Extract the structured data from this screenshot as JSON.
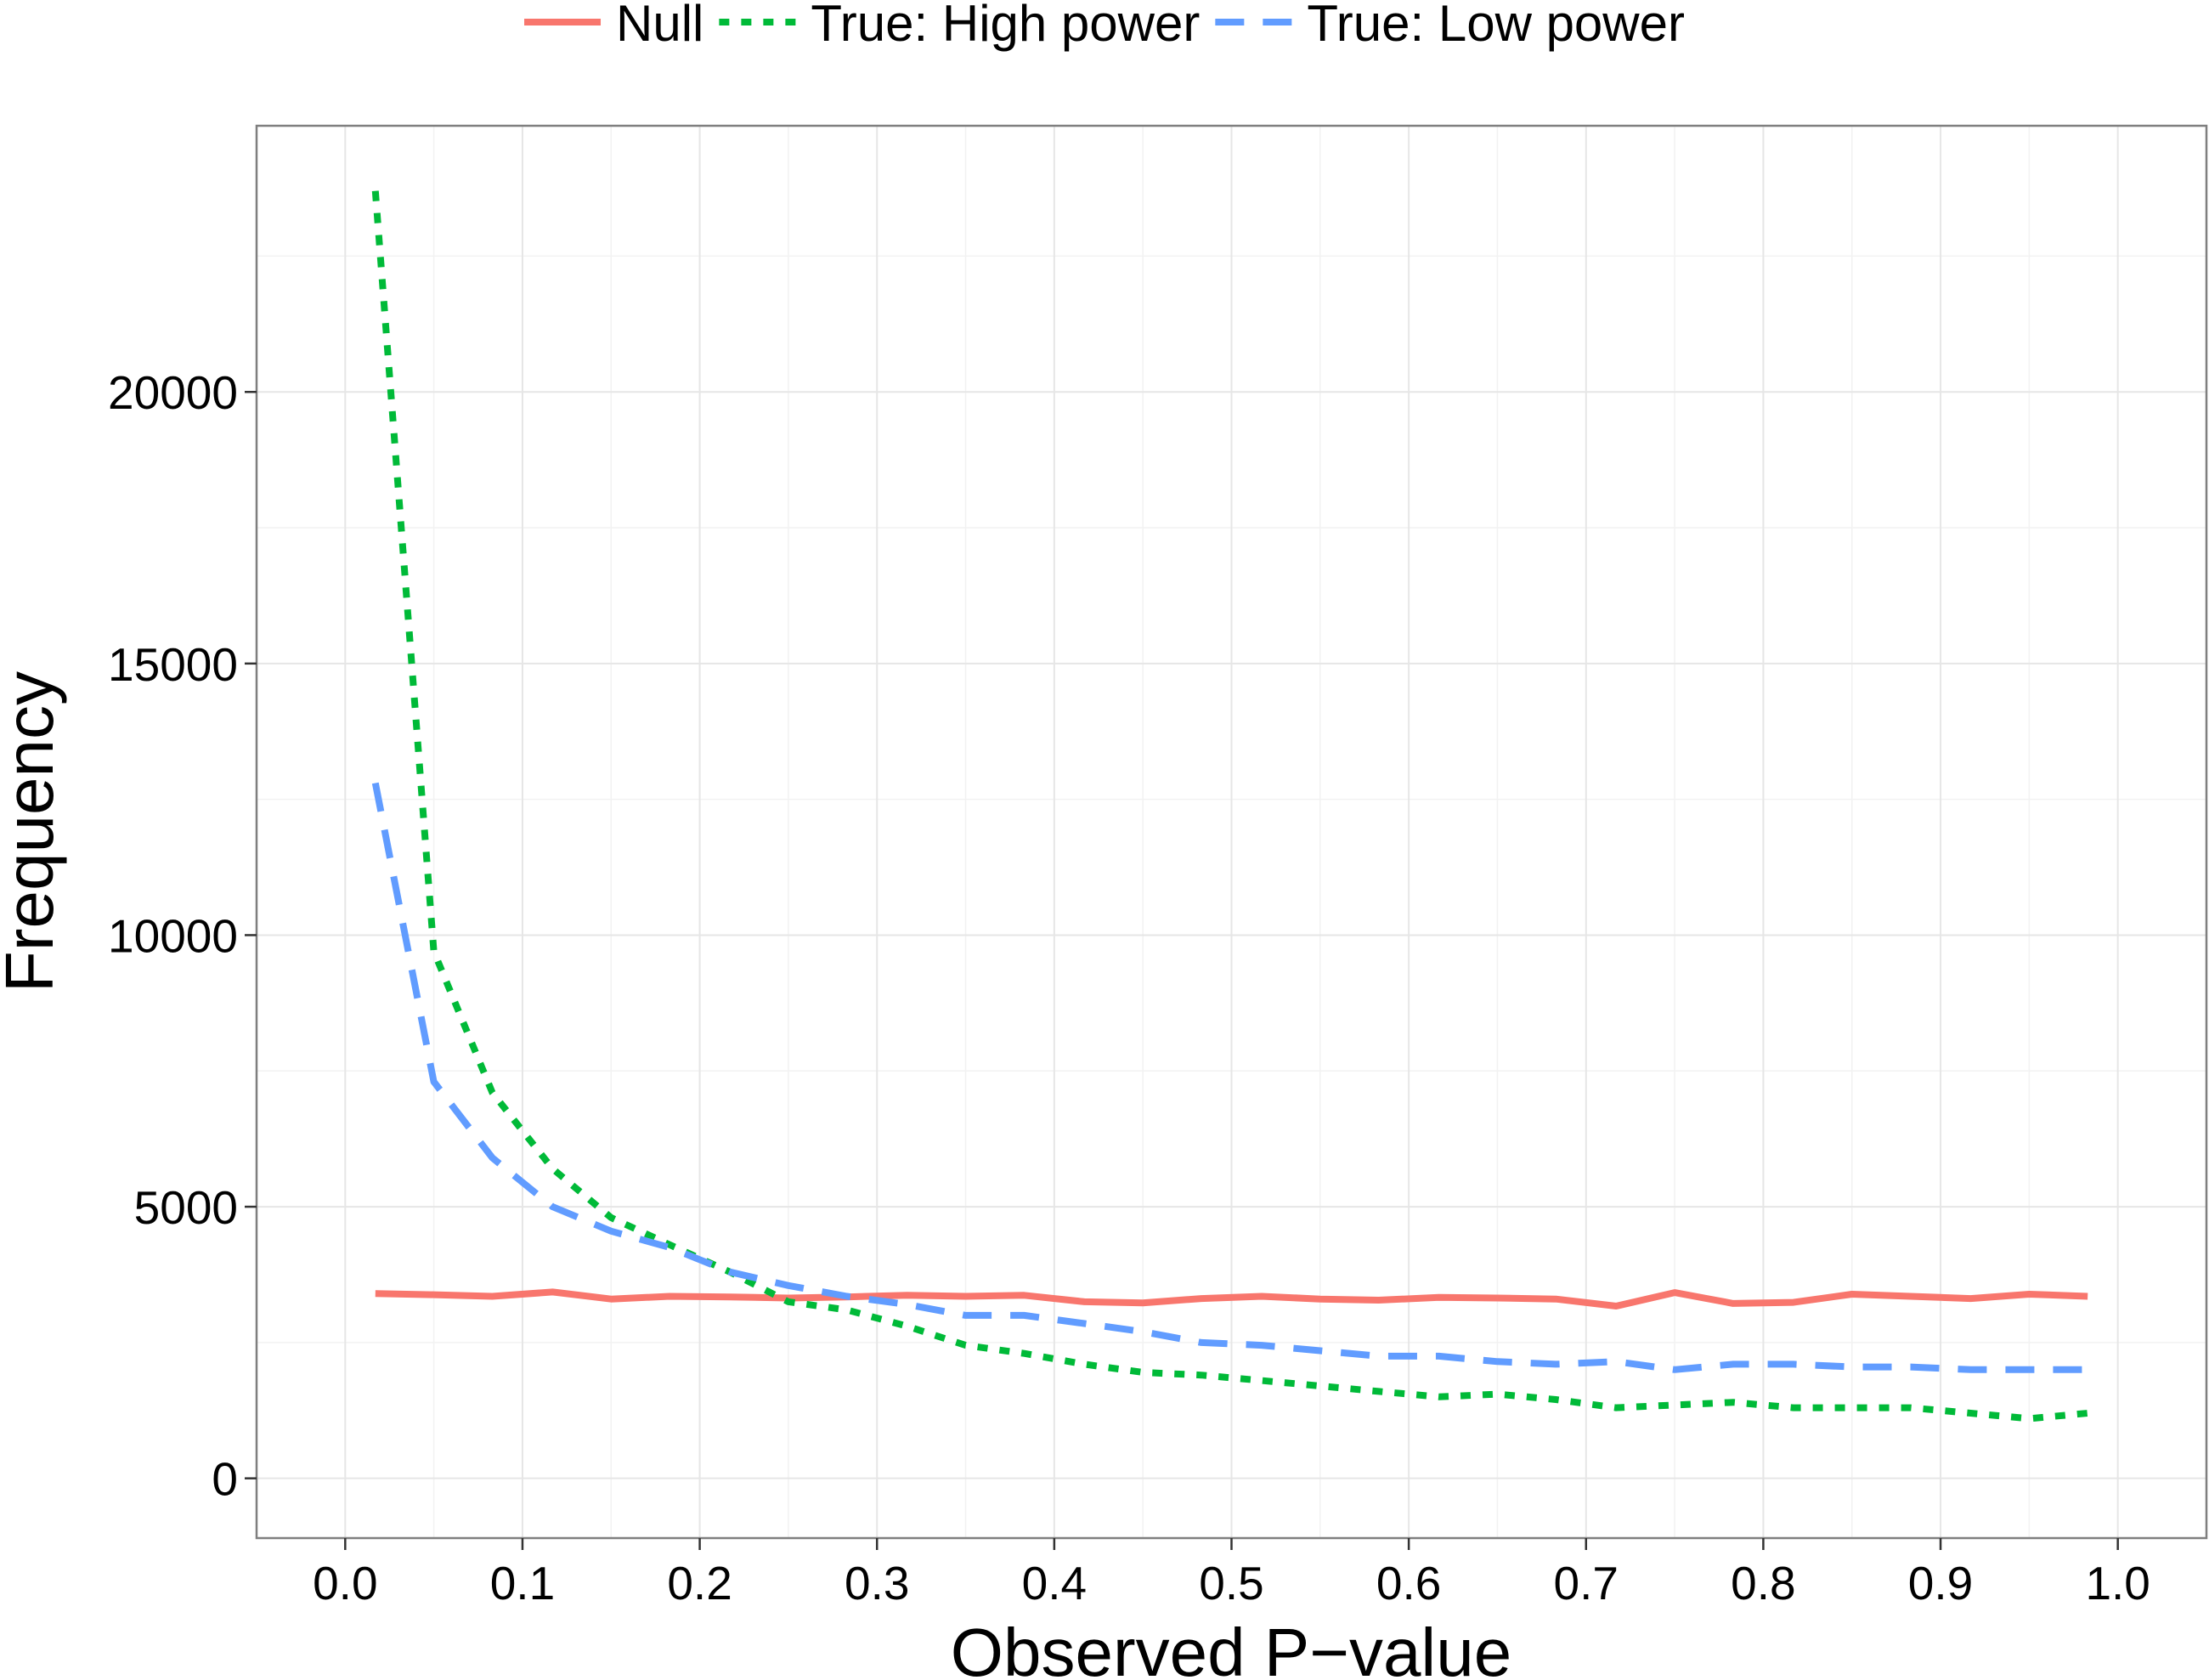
{
  "chart_data": {
    "type": "line",
    "xlabel": "Observed P−value",
    "ylabel": "Frequency",
    "xlim": [
      -0.05,
      1.05
    ],
    "ylim": [
      -1100,
      24900
    ],
    "xticks": [
      0.0,
      0.1,
      0.2,
      0.3,
      0.4,
      0.5,
      0.6,
      0.7,
      0.8,
      0.9,
      1.0
    ],
    "xtick_labels": [
      "0.0",
      "0.1",
      "0.2",
      "0.3",
      "0.4",
      "0.5",
      "0.6",
      "0.7",
      "0.8",
      "0.9",
      "1.0"
    ],
    "yticks": [
      0,
      5000,
      10000,
      15000,
      20000
    ],
    "ytick_labels": [
      "0",
      "5000",
      "10000",
      "15000",
      "20000"
    ],
    "grid": true,
    "legend_position": "top",
    "x": [
      0.017,
      0.05,
      0.083,
      0.117,
      0.15,
      0.183,
      0.217,
      0.25,
      0.283,
      0.317,
      0.35,
      0.383,
      0.417,
      0.45,
      0.483,
      0.517,
      0.55,
      0.583,
      0.617,
      0.65,
      0.683,
      0.717,
      0.75,
      0.783,
      0.817,
      0.85,
      0.883,
      0.917,
      0.95,
      0.983
    ],
    "series": [
      {
        "name": "Null",
        "color": "#F8766D",
        "dash": "solid",
        "values": [
          3400,
          3380,
          3350,
          3430,
          3300,
          3350,
          3340,
          3320,
          3340,
          3370,
          3350,
          3370,
          3250,
          3230,
          3310,
          3350,
          3300,
          3280,
          3330,
          3320,
          3300,
          3170,
          3420,
          3220,
          3240,
          3390,
          3350,
          3310,
          3390,
          3350
        ]
      },
      {
        "name": "True: High power",
        "color": "#00BA38",
        "dash": "dotted",
        "values": [
          23700,
          9700,
          7100,
          5700,
          4800,
          4300,
          3800,
          3250,
          3100,
          2800,
          2450,
          2300,
          2100,
          1950,
          1900,
          1800,
          1700,
          1600,
          1500,
          1550,
          1450,
          1300,
          1350,
          1400,
          1300,
          1300,
          1300,
          1200,
          1100,
          1200
        ]
      },
      {
        "name": "True: Low power",
        "color": "#619CFF",
        "dash": "dashed",
        "values": [
          12800,
          7300,
          5900,
          5000,
          4550,
          4250,
          3800,
          3550,
          3350,
          3200,
          3000,
          3000,
          2850,
          2700,
          2500,
          2450,
          2350,
          2250,
          2250,
          2150,
          2100,
          2150,
          2000,
          2100,
          2100,
          2050,
          2050,
          2000,
          2000,
          2000
        ]
      }
    ]
  }
}
